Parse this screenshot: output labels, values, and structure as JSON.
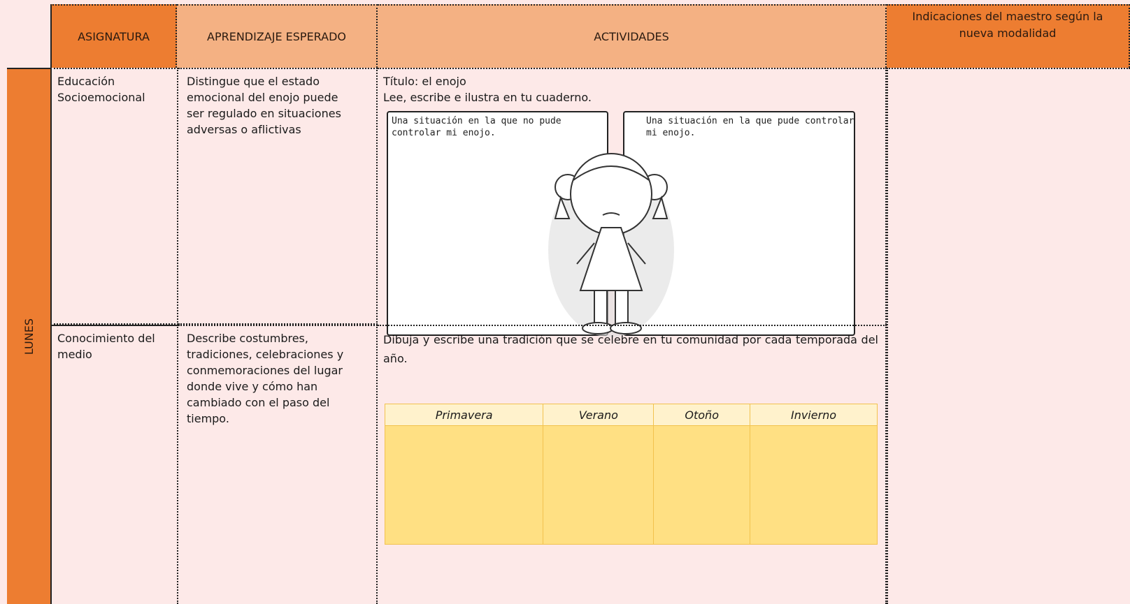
{
  "header": {
    "columns": [
      "ASIGNATURA",
      "APRENDIZAJE ESPERADO",
      "ACTIVIDADES",
      "Indicaciones del maestro según la nueva modalidad"
    ]
  },
  "day": "LUNES",
  "rows": [
    {
      "subject": "Educación Socioemocional",
      "learning": "Distingue que el estado emocional del enojo puede ser regulado en situaciones adversas o aflictivas",
      "activity": {
        "title": "Título: el enojo",
        "instruction": "Lee, escribe e ilustra en tu cuaderno.",
        "boxes": [
          "Una situación en la que no pude controlar mi enojo.",
          "Una situación en la que pude controlar mi enojo."
        ]
      }
    },
    {
      "subject": "Conocimiento del medio",
      "learning": "Describe costumbres, tradiciones, celebraciones y conmemoraciones del lugar donde vive y cómo han cambiado con el paso del tiempo.",
      "activity": {
        "instruction": "Dibuja y escribe una tradición que se celebre en tu comunidad por cada temporada del año.",
        "seasons": [
          "Primavera",
          "Verano",
          "Otoño",
          "Invierno"
        ]
      }
    }
  ]
}
